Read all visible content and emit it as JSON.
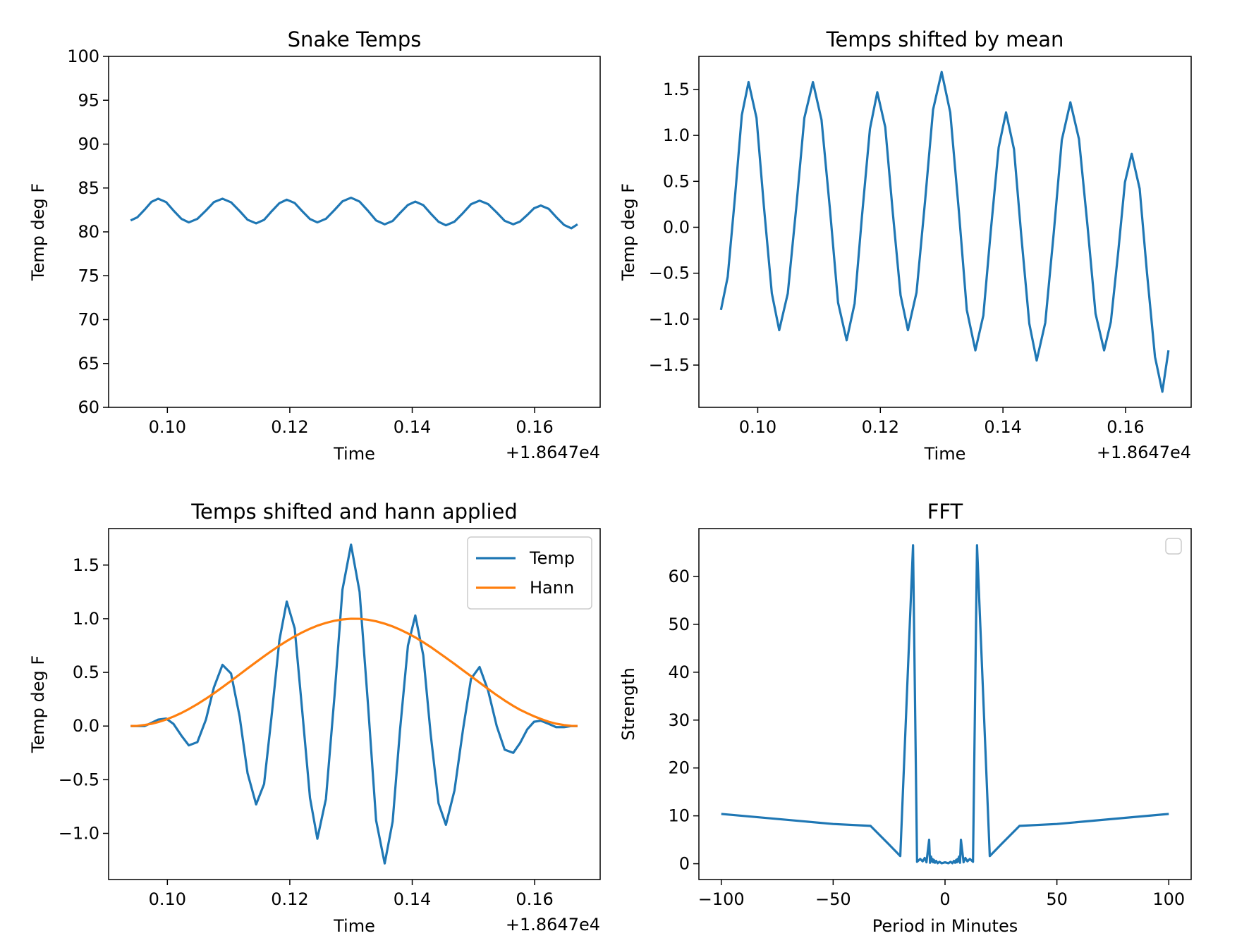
{
  "chart_data": [
    {
      "type": "line",
      "title": "Snake Temps",
      "xlabel": "Time",
      "ylabel": "Temp deg F",
      "x_offset_text": "+1.8647e4",
      "x": [
        0.094,
        0.0951,
        0.0963,
        0.0974,
        0.0985,
        0.0998,
        0.101,
        0.1023,
        0.1035,
        0.1049,
        0.1063,
        0.1076,
        0.109,
        0.1104,
        0.1118,
        0.1131,
        0.1145,
        0.1158,
        0.117,
        0.1183,
        0.1195,
        0.1208,
        0.122,
        0.1233,
        0.1245,
        0.1259,
        0.1273,
        0.1286,
        0.13,
        0.1314,
        0.1328,
        0.1341,
        0.1355,
        0.1368,
        0.138,
        0.1393,
        0.1405,
        0.1418,
        0.143,
        0.1443,
        0.1455,
        0.1469,
        0.1483,
        0.1496,
        0.151,
        0.1524,
        0.1538,
        0.1551,
        0.1565,
        0.1576,
        0.1588,
        0.1599,
        0.161,
        0.1623,
        0.1635,
        0.1648,
        0.166,
        0.167
      ],
      "series": [
        {
          "color": "#1f77b4",
          "values": [
            81.3,
            81.66,
            82.54,
            83.42,
            83.78,
            83.39,
            82.43,
            81.48,
            81.08,
            81.48,
            82.43,
            83.39,
            83.78,
            83.37,
            82.38,
            81.38,
            80.97,
            81.37,
            82.32,
            83.27,
            83.67,
            83.29,
            82.38,
            81.46,
            81.08,
            81.49,
            82.49,
            83.48,
            83.89,
            83.45,
            82.38,
            81.3,
            80.86,
            81.24,
            82.15,
            83.07,
            83.45,
            83.05,
            82.1,
            81.15,
            80.75,
            81.16,
            82.15,
            83.15,
            83.56,
            83.16,
            82.21,
            81.26,
            80.86,
            81.17,
            81.93,
            82.69,
            83.0,
            82.62,
            81.7,
            80.79,
            80.41,
            80.86
          ]
        }
      ],
      "xlim": [
        0.0904,
        0.1707
      ],
      "ylim": [
        60,
        100
      ],
      "xticks": [
        {
          "value": 0.1,
          "label": "0.10"
        },
        {
          "value": 0.12,
          "label": "0.12"
        },
        {
          "value": 0.14,
          "label": "0.14"
        },
        {
          "value": 0.16,
          "label": "0.16"
        }
      ],
      "yticks": [
        60,
        65,
        70,
        75,
        80,
        85,
        90,
        95,
        100
      ]
    },
    {
      "type": "line",
      "title": "Temps shifted by mean",
      "xlabel": "Time",
      "ylabel": "Temp deg F",
      "x_offset_text": "+1.8647e4",
      "x": [
        0.094,
        0.0951,
        0.0963,
        0.0974,
        0.0985,
        0.0998,
        0.101,
        0.1023,
        0.1035,
        0.1049,
        0.1063,
        0.1076,
        0.109,
        0.1104,
        0.1118,
        0.1131,
        0.1145,
        0.1158,
        0.117,
        0.1183,
        0.1195,
        0.1208,
        0.122,
        0.1233,
        0.1245,
        0.1259,
        0.1273,
        0.1286,
        0.13,
        0.1314,
        0.1328,
        0.1341,
        0.1355,
        0.1368,
        0.138,
        0.1393,
        0.1405,
        0.1418,
        0.143,
        0.1443,
        0.1455,
        0.1469,
        0.1483,
        0.1496,
        0.151,
        0.1524,
        0.1538,
        0.1551,
        0.1565,
        0.1576,
        0.1588,
        0.1599,
        0.161,
        0.1623,
        0.1635,
        0.1648,
        0.166,
        0.167
      ],
      "series": [
        {
          "color": "#1f77b4",
          "values": [
            -0.9,
            -0.54,
            0.34,
            1.22,
            1.58,
            1.19,
            0.23,
            -0.72,
            -1.12,
            -0.72,
            0.23,
            1.19,
            1.58,
            1.17,
            0.18,
            -0.82,
            -1.23,
            -0.83,
            0.12,
            1.07,
            1.47,
            1.09,
            0.18,
            -0.74,
            -1.12,
            -0.71,
            0.29,
            1.28,
            1.69,
            1.25,
            0.18,
            -0.9,
            -1.34,
            -0.96,
            -0.05,
            0.87,
            1.25,
            0.85,
            -0.1,
            -1.05,
            -1.45,
            -1.04,
            -0.05,
            0.95,
            1.36,
            0.96,
            0.01,
            -0.94,
            -1.34,
            -1.03,
            -0.27,
            0.49,
            0.8,
            0.42,
            -0.5,
            -1.41,
            -1.79,
            -1.34
          ]
        }
      ],
      "xlim": [
        0.0904,
        0.1707
      ],
      "ylim": [
        -1.96,
        1.86
      ],
      "xticks": [
        {
          "value": 0.1,
          "label": "0.10"
        },
        {
          "value": 0.12,
          "label": "0.12"
        },
        {
          "value": 0.14,
          "label": "0.14"
        },
        {
          "value": 0.16,
          "label": "0.16"
        }
      ],
      "yticks": [
        {
          "value": -1.5,
          "label": "−1.5"
        },
        {
          "value": -1,
          "label": "−1.0"
        },
        {
          "value": -0.5,
          "label": "−0.5"
        },
        {
          "value": 0,
          "label": "0.0"
        },
        0.5,
        {
          "value": 1,
          "label": "1.0"
        },
        1.5
      ]
    },
    {
      "type": "line",
      "title": "Temps shifted and hann applied",
      "xlabel": "Time",
      "ylabel": "Temp deg F",
      "x_offset_text": "+1.8647e4",
      "legend": "upper right",
      "x": [
        0.094,
        0.0951,
        0.0963,
        0.0974,
        0.0985,
        0.0998,
        0.101,
        0.1023,
        0.1035,
        0.1049,
        0.1063,
        0.1076,
        0.109,
        0.1104,
        0.1118,
        0.1131,
        0.1145,
        0.1158,
        0.117,
        0.1183,
        0.1195,
        0.1208,
        0.122,
        0.1233,
        0.1245,
        0.1259,
        0.1273,
        0.1286,
        0.13,
        0.1314,
        0.1328,
        0.1341,
        0.1355,
        0.1368,
        0.138,
        0.1393,
        0.1405,
        0.1418,
        0.143,
        0.1443,
        0.1455,
        0.1469,
        0.1483,
        0.1496,
        0.151,
        0.1524,
        0.1538,
        0.1551,
        0.1565,
        0.1576,
        0.1588,
        0.1599,
        0.161,
        0.1623,
        0.1635,
        0.1648,
        0.166,
        0.167
      ],
      "series": [
        {
          "name": "Temp",
          "color": "#1f77b4",
          "values": [
            0,
            0,
            0,
            0.03,
            0.06,
            0.07,
            0.02,
            -0.09,
            -0.18,
            -0.15,
            0.06,
            0.36,
            0.57,
            0.49,
            0.09,
            -0.44,
            -0.73,
            -0.54,
            0.08,
            0.8,
            1.16,
            0.91,
            0.16,
            -0.67,
            -1.05,
            -0.68,
            0.28,
            1.27,
            1.69,
            1.25,
            0.18,
            -0.88,
            -1.28,
            -0.89,
            -0.04,
            0.75,
            1.03,
            0.66,
            -0.07,
            -0.72,
            -0.92,
            -0.6,
            -0.03,
            0.44,
            0.55,
            0.33,
            0,
            -0.22,
            -0.25,
            -0.16,
            -0.03,
            0.04,
            0.05,
            0.02,
            -0.01,
            -0.01,
            0,
            0
          ]
        },
        {
          "name": "Hann",
          "color": "#ff7f0e",
          "values": [
            0,
            0.002,
            0.01,
            0.021,
            0.037,
            0.061,
            0.088,
            0.122,
            0.158,
            0.204,
            0.255,
            0.305,
            0.362,
            0.421,
            0.481,
            0.537,
            0.596,
            0.65,
            0.699,
            0.749,
            0.792,
            0.836,
            0.872,
            0.907,
            0.935,
            0.961,
            0.981,
            0.993,
            1,
            0.999,
            0.99,
            0.976,
            0.954,
            0.928,
            0.899,
            0.863,
            0.826,
            0.781,
            0.737,
            0.685,
            0.636,
            0.579,
            0.519,
            0.465,
            0.405,
            0.346,
            0.288,
            0.238,
            0.188,
            0.152,
            0.119,
            0.091,
            0.066,
            0.04,
            0.022,
            0.009,
            0.002,
            0
          ]
        }
      ],
      "xlim": [
        0.0904,
        0.1707
      ],
      "ylim": [
        -1.43,
        1.84
      ],
      "xticks": [
        {
          "value": 0.1,
          "label": "0.10"
        },
        {
          "value": 0.12,
          "label": "0.12"
        },
        {
          "value": 0.14,
          "label": "0.14"
        },
        {
          "value": 0.16,
          "label": "0.16"
        }
      ],
      "yticks": [
        {
          "value": -1,
          "label": "−1.0"
        },
        {
          "value": -0.5,
          "label": "−0.5"
        },
        {
          "value": 0,
          "label": "0.0"
        },
        0.5,
        {
          "value": 1,
          "label": "1.0"
        },
        1.5
      ]
    },
    {
      "type": "line",
      "title": "FFT",
      "xlabel": "Period in Minutes",
      "ylabel": "Strength",
      "legend": "upper right",
      "x": [
        -100,
        -50,
        -33.3,
        -25,
        -20,
        -14.3,
        -12.5,
        -11.1,
        -10,
        -9.1,
        -8.3,
        -7.1,
        -6.7,
        -6.25,
        -5.9,
        -5.6,
        -5.3,
        -5,
        -4.5,
        -4,
        -3.3,
        -2.5,
        -1.5,
        0,
        1.5,
        2.5,
        3.3,
        4,
        4.5,
        5,
        5.3,
        5.6,
        5.9,
        6.25,
        6.7,
        7.1,
        8.3,
        9.1,
        10,
        11.1,
        12.5,
        14.3,
        20,
        25,
        33.3,
        50,
        100
      ],
      "series": [
        {
          "color": "#1f77b4",
          "values": [
            10.4,
            8.3,
            7.9,
            4.0,
            1.6,
            66.5,
            0.4,
            1.0,
            0.5,
            1.2,
            0.3,
            5.0,
            0.2,
            1.5,
            0.5,
            1.0,
            0.3,
            0.8,
            0.2,
            0.6,
            0.1,
            0.4,
            0.1,
            0.3,
            0.1,
            0.4,
            0.1,
            0.6,
            0.2,
            0.8,
            0.3,
            1.0,
            0.5,
            1.5,
            0.2,
            5.0,
            0.3,
            1.2,
            0.5,
            1.0,
            0.4,
            66.5,
            1.6,
            4.0,
            7.9,
            8.3,
            10.4
          ]
        }
      ],
      "xlim": [
        -110,
        110
      ],
      "ylim": [
        -3.3,
        70
      ],
      "xticks": [
        {
          "value": -100,
          "label": "−100"
        },
        {
          "value": -50,
          "label": "−50"
        },
        0,
        50,
        100
      ],
      "yticks": [
        0,
        10,
        20,
        30,
        40,
        50,
        60
      ]
    }
  ]
}
